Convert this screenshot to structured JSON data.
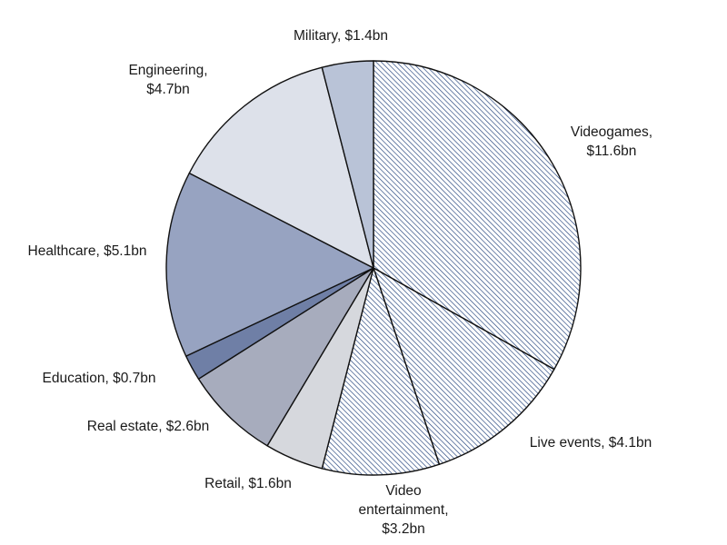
{
  "chart_data": {
    "type": "pie",
    "title": "",
    "start_angle_deg": 0,
    "direction": "clockwise",
    "slices": [
      {
        "id": "videogames",
        "lines": [
          "Videogames,",
          "$11.6bn"
        ],
        "value": 11.6,
        "fill": "hatch",
        "color": "#1f3f7a"
      },
      {
        "id": "live-events",
        "lines": [
          "Live events, $4.1bn"
        ],
        "value": 4.1,
        "fill": "hatch",
        "color": "#1f3f7a"
      },
      {
        "id": "video-entertainment",
        "lines": [
          "Video",
          "entertainment,",
          "$3.2bn"
        ],
        "value": 3.2,
        "fill": "hatch",
        "color": "#1f3f7a"
      },
      {
        "id": "retail",
        "lines": [
          "Retail, $1.6bn"
        ],
        "value": 1.6,
        "fill": "solid",
        "color": "#d6d8dd"
      },
      {
        "id": "real-estate",
        "lines": [
          "Real estate, $2.6bn"
        ],
        "value": 2.6,
        "fill": "solid",
        "color": "#a7acbd"
      },
      {
        "id": "education",
        "lines": [
          "Education, $0.7bn"
        ],
        "value": 0.7,
        "fill": "solid",
        "color": "#6f7fa6"
      },
      {
        "id": "healthcare",
        "lines": [
          "Healthcare, $5.1bn"
        ],
        "value": 5.1,
        "fill": "solid",
        "color": "#97a3c1"
      },
      {
        "id": "engineering",
        "lines": [
          "Engineering,",
          "$4.7bn"
        ],
        "value": 4.7,
        "fill": "solid",
        "color": "#dde1ea"
      },
      {
        "id": "military",
        "lines": [
          "Military, $1.4bn"
        ],
        "value": 1.4,
        "fill": "solid",
        "color": "#b9c3d7"
      }
    ]
  }
}
